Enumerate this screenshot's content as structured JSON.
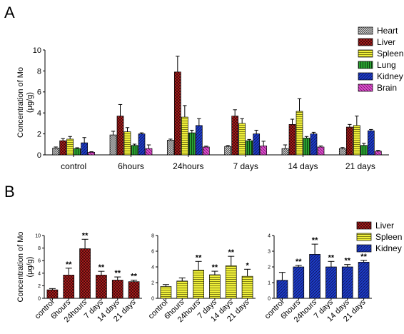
{
  "panels": {
    "a_label": "A",
    "b_label": "B"
  },
  "chart_data": [
    {
      "id": "A",
      "type": "bar",
      "ylabel_line1": "Concentration of Mo",
      "ylabel_line2": "(μg/g)",
      "ylim": [
        0,
        10
      ],
      "yticks": [
        "0",
        "2",
        "4",
        "6",
        "8",
        "10"
      ],
      "categories": [
        "control",
        "6hours",
        "24hours",
        "7 days",
        "14 days",
        "21 days"
      ],
      "legend_position": "right",
      "series": [
        {
          "name": "Heart",
          "pattern": "heart",
          "values": [
            0.65,
            1.9,
            1.4,
            0.8,
            0.6,
            0.6
          ],
          "errors": [
            0.1,
            0.35,
            0.1,
            0.1,
            0.35,
            0.1
          ]
        },
        {
          "name": "Liver",
          "pattern": "liver",
          "values": [
            1.35,
            3.7,
            7.9,
            3.7,
            2.9,
            2.65
          ],
          "errors": [
            0.2,
            1.1,
            1.5,
            0.6,
            0.5,
            0.25
          ]
        },
        {
          "name": "Spleen",
          "pattern": "spleen",
          "values": [
            1.5,
            2.2,
            3.6,
            3.0,
            4.15,
            2.8
          ],
          "errors": [
            0.25,
            0.4,
            1.1,
            0.45,
            1.2,
            0.9
          ]
        },
        {
          "name": "Lung",
          "pattern": "lung",
          "values": [
            0.6,
            0.9,
            2.1,
            1.35,
            1.6,
            0.9
          ],
          "errors": [
            0.08,
            0.12,
            0.25,
            0.12,
            0.15,
            0.2
          ]
        },
        {
          "name": "Kidney",
          "pattern": "kidney",
          "values": [
            1.15,
            2.0,
            2.8,
            2.0,
            2.0,
            2.3
          ],
          "errors": [
            0.5,
            0.1,
            0.65,
            0.35,
            0.15,
            0.12
          ]
        },
        {
          "name": "Brain",
          "pattern": "brain",
          "values": [
            0.25,
            0.6,
            0.75,
            0.85,
            0.75,
            0.35
          ],
          "errors": [
            0.05,
            0.35,
            0.08,
            0.45,
            0.1,
            0.08
          ]
        }
      ]
    },
    {
      "id": "B1",
      "type": "bar",
      "ylabel_line1": "Concentration of Mo",
      "ylabel_line2": "(μg/g)",
      "ylim": [
        0,
        10
      ],
      "yticks": [
        "0",
        "2",
        "4",
        "6",
        "8",
        "10"
      ],
      "categories": [
        "control",
        "6hours",
        "24hours",
        "7 days",
        "14 days",
        "21 days"
      ],
      "series": [
        {
          "name": "Liver",
          "pattern": "liver",
          "values": [
            1.35,
            3.7,
            7.9,
            3.7,
            2.9,
            2.65
          ],
          "errors": [
            0.2,
            1.1,
            1.5,
            0.6,
            0.5,
            0.25
          ]
        }
      ],
      "significance": [
        "",
        "**",
        "**",
        "**",
        "**",
        "**"
      ]
    },
    {
      "id": "B2",
      "type": "bar",
      "ylim": [
        0,
        8
      ],
      "yticks": [
        "0",
        "2",
        "4",
        "6",
        "8"
      ],
      "categories": [
        "control",
        "6hours",
        "24hours",
        "7 days",
        "14 days",
        "21 days"
      ],
      "series": [
        {
          "name": "Spleen",
          "pattern": "spleen",
          "values": [
            1.5,
            2.2,
            3.6,
            3.0,
            4.15,
            2.8
          ],
          "errors": [
            0.25,
            0.4,
            1.1,
            0.45,
            1.2,
            0.9
          ]
        }
      ],
      "significance": [
        "",
        "",
        "**",
        "**",
        "**",
        "*"
      ]
    },
    {
      "id": "B3",
      "type": "bar",
      "ylim": [
        0,
        4
      ],
      "yticks": [
        "0",
        "1",
        "2",
        "3",
        "4"
      ],
      "categories": [
        "control",
        "6hours",
        "24hours",
        "7 days",
        "14 days",
        "21 days"
      ],
      "series": [
        {
          "name": "Kidney",
          "pattern": "kidney",
          "values": [
            1.15,
            2.0,
            2.8,
            2.0,
            2.0,
            2.3
          ],
          "errors": [
            0.5,
            0.1,
            0.65,
            0.35,
            0.15,
            0.12
          ]
        }
      ],
      "significance": [
        "",
        "**",
        "**",
        "**",
        "**",
        "**"
      ]
    }
  ],
  "legend_b": [
    {
      "name": "Liver",
      "pattern": "liver"
    },
    {
      "name": "Spleen",
      "pattern": "spleen"
    },
    {
      "name": "Kidney",
      "pattern": "kidney"
    }
  ],
  "colors": {
    "heart": "#8c8c8c",
    "liver": "#c81e1e",
    "spleen": "#e6e61e",
    "lung": "#1e8c28",
    "kidney": "#1e3cc8",
    "brain": "#d23cbe"
  }
}
